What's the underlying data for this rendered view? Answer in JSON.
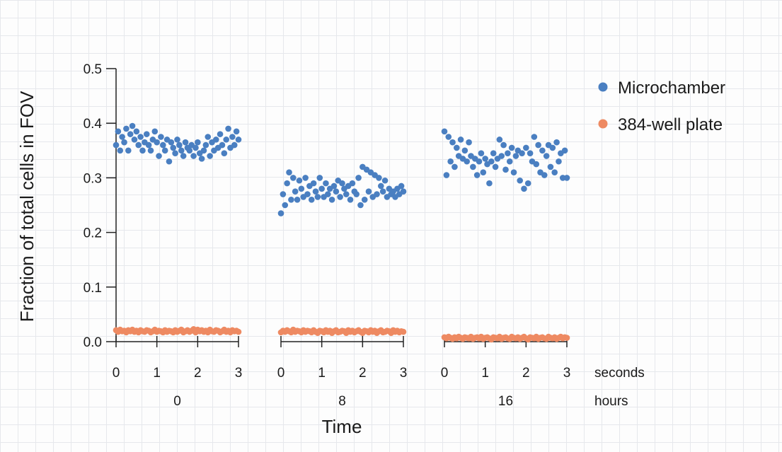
{
  "chart_data": {
    "type": "scatter",
    "title": "",
    "xlabel": "Time",
    "ylabel": "Fraction of total cells in FOV",
    "ylim": [
      0,
      0.5
    ],
    "yticks": [
      "0.0",
      "0.1",
      "0.2",
      "0.3",
      "0.4",
      "0.5"
    ],
    "x_inner_ticks": [
      "0",
      "1",
      "2",
      "3"
    ],
    "x_inner_unit": "seconds",
    "x_outer_unit": "hours",
    "groups": [
      "0",
      "8",
      "16"
    ],
    "legend_position": "top-right",
    "series": [
      {
        "name": "Microchamber",
        "color": "#4a7fc1",
        "groups": [
          {
            "hours": "0",
            "x": [
              0.0,
              0.05,
              0.1,
              0.15,
              0.2,
              0.25,
              0.3,
              0.35,
              0.4,
              0.45,
              0.5,
              0.55,
              0.6,
              0.65,
              0.7,
              0.75,
              0.8,
              0.85,
              0.9,
              0.95,
              1.0,
              1.05,
              1.1,
              1.15,
              1.2,
              1.25,
              1.3,
              1.35,
              1.4,
              1.45,
              1.5,
              1.55,
              1.6,
              1.65,
              1.7,
              1.75,
              1.8,
              1.85,
              1.9,
              1.95,
              2.0,
              2.05,
              2.1,
              2.15,
              2.2,
              2.25,
              2.3,
              2.35,
              2.4,
              2.45,
              2.5,
              2.55,
              2.6,
              2.65,
              2.7,
              2.75,
              2.8,
              2.85,
              2.9,
              2.95,
              3.0
            ],
            "y": [
              0.36,
              0.385,
              0.35,
              0.375,
              0.365,
              0.39,
              0.35,
              0.38,
              0.395,
              0.37,
              0.385,
              0.36,
              0.375,
              0.35,
              0.365,
              0.38,
              0.36,
              0.35,
              0.37,
              0.385,
              0.365,
              0.34,
              0.375,
              0.36,
              0.35,
              0.37,
              0.33,
              0.365,
              0.355,
              0.345,
              0.37,
              0.36,
              0.35,
              0.34,
              0.365,
              0.355,
              0.35,
              0.36,
              0.34,
              0.355,
              0.365,
              0.345,
              0.335,
              0.35,
              0.36,
              0.375,
              0.34,
              0.365,
              0.35,
              0.37,
              0.355,
              0.38,
              0.36,
              0.345,
              0.37,
              0.39,
              0.355,
              0.375,
              0.36,
              0.385,
              0.37
            ]
          },
          {
            "hours": "8",
            "x": [
              0.0,
              0.05,
              0.1,
              0.15,
              0.2,
              0.25,
              0.3,
              0.35,
              0.4,
              0.45,
              0.5,
              0.55,
              0.6,
              0.65,
              0.7,
              0.75,
              0.8,
              0.85,
              0.9,
              0.95,
              1.0,
              1.05,
              1.1,
              1.15,
              1.2,
              1.25,
              1.3,
              1.35,
              1.4,
              1.45,
              1.5,
              1.55,
              1.6,
              1.65,
              1.7,
              1.75,
              1.8,
              1.85,
              1.9,
              1.95,
              2.0,
              2.05,
              2.1,
              2.15,
              2.2,
              2.25,
              2.3,
              2.35,
              2.4,
              2.45,
              2.5,
              2.55,
              2.6,
              2.65,
              2.7,
              2.75,
              2.8,
              2.85,
              2.9,
              2.95,
              3.0
            ],
            "y": [
              0.235,
              0.27,
              0.25,
              0.29,
              0.31,
              0.26,
              0.3,
              0.275,
              0.26,
              0.295,
              0.28,
              0.265,
              0.3,
              0.27,
              0.285,
              0.26,
              0.29,
              0.275,
              0.265,
              0.3,
              0.28,
              0.265,
              0.29,
              0.27,
              0.28,
              0.26,
              0.285,
              0.275,
              0.295,
              0.265,
              0.29,
              0.28,
              0.27,
              0.285,
              0.26,
              0.29,
              0.275,
              0.27,
              0.3,
              0.25,
              0.32,
              0.26,
              0.315,
              0.275,
              0.31,
              0.265,
              0.305,
              0.27,
              0.3,
              0.285,
              0.275,
              0.295,
              0.265,
              0.28,
              0.27,
              0.275,
              0.265,
              0.28,
              0.27,
              0.285,
              0.275
            ]
          },
          {
            "hours": "16",
            "x": [
              0.0,
              0.05,
              0.1,
              0.15,
              0.2,
              0.25,
              0.3,
              0.35,
              0.4,
              0.45,
              0.5,
              0.55,
              0.6,
              0.65,
              0.7,
              0.75,
              0.8,
              0.85,
              0.9,
              0.95,
              1.0,
              1.05,
              1.1,
              1.15,
              1.2,
              1.25,
              1.3,
              1.35,
              1.4,
              1.45,
              1.5,
              1.55,
              1.6,
              1.65,
              1.7,
              1.75,
              1.8,
              1.85,
              1.9,
              1.95,
              2.0,
              2.05,
              2.1,
              2.15,
              2.2,
              2.25,
              2.3,
              2.35,
              2.4,
              2.45,
              2.5,
              2.55,
              2.6,
              2.65,
              2.7,
              2.75,
              2.8,
              2.85,
              2.9,
              2.95,
              3.0
            ],
            "y": [
              0.385,
              0.305,
              0.375,
              0.33,
              0.365,
              0.32,
              0.355,
              0.34,
              0.37,
              0.335,
              0.35,
              0.33,
              0.365,
              0.34,
              0.32,
              0.335,
              0.305,
              0.33,
              0.345,
              0.31,
              0.335,
              0.325,
              0.29,
              0.33,
              0.345,
              0.32,
              0.335,
              0.37,
              0.34,
              0.36,
              0.315,
              0.345,
              0.33,
              0.355,
              0.31,
              0.34,
              0.35,
              0.295,
              0.345,
              0.28,
              0.355,
              0.29,
              0.345,
              0.33,
              0.375,
              0.325,
              0.36,
              0.31,
              0.35,
              0.305,
              0.34,
              0.36,
              0.32,
              0.355,
              0.31,
              0.365,
              0.33,
              0.345,
              0.3,
              0.35,
              0.3
            ]
          }
        ]
      },
      {
        "name": "384-well plate",
        "color": "#ee8a62",
        "groups": [
          {
            "hours": "0",
            "x": [
              0.0,
              0.05,
              0.1,
              0.15,
              0.2,
              0.25,
              0.3,
              0.35,
              0.4,
              0.45,
              0.5,
              0.55,
              0.6,
              0.65,
              0.7,
              0.75,
              0.8,
              0.85,
              0.9,
              0.95,
              1.0,
              1.05,
              1.1,
              1.15,
              1.2,
              1.25,
              1.3,
              1.35,
              1.4,
              1.45,
              1.5,
              1.55,
              1.6,
              1.65,
              1.7,
              1.75,
              1.8,
              1.85,
              1.9,
              1.95,
              2.0,
              2.05,
              2.1,
              2.15,
              2.2,
              2.25,
              2.3,
              2.35,
              2.4,
              2.45,
              2.5,
              2.55,
              2.6,
              2.65,
              2.7,
              2.75,
              2.8,
              2.85,
              2.9,
              2.95,
              3.0
            ],
            "y": [
              0.021,
              0.018,
              0.022,
              0.019,
              0.02,
              0.017,
              0.021,
              0.019,
              0.022,
              0.018,
              0.02,
              0.017,
              0.021,
              0.019,
              0.018,
              0.021,
              0.02,
              0.017,
              0.019,
              0.022,
              0.018,
              0.02,
              0.019,
              0.017,
              0.021,
              0.018,
              0.02,
              0.019,
              0.017,
              0.021,
              0.018,
              0.02,
              0.022,
              0.017,
              0.019,
              0.021,
              0.018,
              0.02,
              0.023,
              0.017,
              0.022,
              0.019,
              0.021,
              0.018,
              0.02,
              0.017,
              0.022,
              0.019,
              0.018,
              0.021,
              0.02,
              0.017,
              0.019,
              0.022,
              0.018,
              0.02,
              0.017,
              0.021,
              0.019,
              0.02,
              0.018
            ]
          },
          {
            "hours": "8",
            "x": [
              0.0,
              0.05,
              0.1,
              0.15,
              0.2,
              0.25,
              0.3,
              0.35,
              0.4,
              0.45,
              0.5,
              0.55,
              0.6,
              0.65,
              0.7,
              0.75,
              0.8,
              0.85,
              0.9,
              0.95,
              1.0,
              1.05,
              1.1,
              1.15,
              1.2,
              1.25,
              1.3,
              1.35,
              1.4,
              1.45,
              1.5,
              1.55,
              1.6,
              1.65,
              1.7,
              1.75,
              1.8,
              1.85,
              1.9,
              1.95,
              2.0,
              2.05,
              2.1,
              2.15,
              2.2,
              2.25,
              2.3,
              2.35,
              2.4,
              2.45,
              2.5,
              2.55,
              2.6,
              2.65,
              2.7,
              2.75,
              2.8,
              2.85,
              2.9,
              2.95,
              3.0
            ],
            "y": [
              0.017,
              0.02,
              0.018,
              0.021,
              0.019,
              0.017,
              0.022,
              0.018,
              0.02,
              0.019,
              0.017,
              0.021,
              0.018,
              0.02,
              0.019,
              0.017,
              0.021,
              0.018,
              0.016,
              0.02,
              0.019,
              0.017,
              0.021,
              0.018,
              0.02,
              0.016,
              0.019,
              0.021,
              0.017,
              0.018,
              0.02,
              0.019,
              0.016,
              0.021,
              0.018,
              0.02,
              0.017,
              0.019,
              0.021,
              0.018,
              0.016,
              0.02,
              0.019,
              0.017,
              0.021,
              0.018,
              0.02,
              0.016,
              0.019,
              0.021,
              0.017,
              0.018,
              0.02,
              0.019,
              0.016,
              0.021,
              0.018,
              0.02,
              0.017,
              0.019,
              0.018
            ]
          },
          {
            "hours": "16",
            "x": [
              0.0,
              0.05,
              0.1,
              0.15,
              0.2,
              0.25,
              0.3,
              0.35,
              0.4,
              0.45,
              0.5,
              0.55,
              0.6,
              0.65,
              0.7,
              0.75,
              0.8,
              0.85,
              0.9,
              0.95,
              1.0,
              1.05,
              1.1,
              1.15,
              1.2,
              1.25,
              1.3,
              1.35,
              1.4,
              1.45,
              1.5,
              1.55,
              1.6,
              1.65,
              1.7,
              1.75,
              1.8,
              1.85,
              1.9,
              1.95,
              2.0,
              2.05,
              2.1,
              2.15,
              2.2,
              2.25,
              2.3,
              2.35,
              2.4,
              2.45,
              2.5,
              2.55,
              2.6,
              2.65,
              2.7,
              2.75,
              2.8,
              2.85,
              2.9,
              2.95,
              3.0
            ],
            "y": [
              0.008,
              0.006,
              0.009,
              0.007,
              0.005,
              0.008,
              0.006,
              0.009,
              0.007,
              0.005,
              0.008,
              0.007,
              0.006,
              0.009,
              0.005,
              0.007,
              0.008,
              0.006,
              0.009,
              0.005,
              0.007,
              0.008,
              0.006,
              0.004,
              0.008,
              0.007,
              0.006,
              0.009,
              0.005,
              0.007,
              0.008,
              0.006,
              0.005,
              0.009,
              0.007,
              0.006,
              0.008,
              0.005,
              0.007,
              0.009,
              0.006,
              0.004,
              0.008,
              0.007,
              0.006,
              0.009,
              0.005,
              0.007,
              0.008,
              0.006,
              0.005,
              0.009,
              0.007,
              0.006,
              0.008,
              0.005,
              0.007,
              0.009,
              0.006,
              0.008,
              0.007
            ]
          }
        ]
      }
    ]
  }
}
